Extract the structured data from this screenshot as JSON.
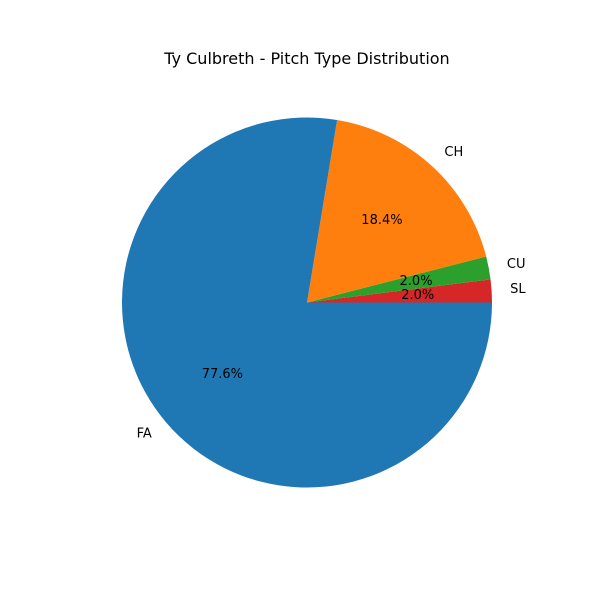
{
  "chart_data": {
    "type": "pie",
    "title": "Ty Culbreth - Pitch Type Distribution",
    "start_angle_deg": 0,
    "direction": "counterclockwise",
    "slices": [
      {
        "label": "SL",
        "value": 2.0,
        "pct_label": "2.0%",
        "color": "#d62728"
      },
      {
        "label": "CU",
        "value": 2.0,
        "pct_label": "2.0%",
        "color": "#2ca02c"
      },
      {
        "label": "CH",
        "value": 18.4,
        "pct_label": "18.4%",
        "color": "#ff7f0e"
      },
      {
        "label": "FA",
        "value": 77.6,
        "pct_label": "77.6%",
        "color": "#1f77b4"
      }
    ]
  }
}
